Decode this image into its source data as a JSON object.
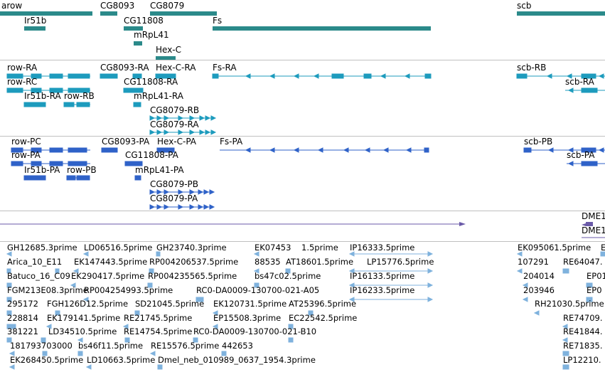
{
  "colors": {
    "gene": "#2b8a8a",
    "transcript": "#1d9bbd",
    "protein": "#2f62c8",
    "deletion": "#6a5aa8",
    "est": "#7fb2dd",
    "divider": "#c0c0c0"
  },
  "tracks": {
    "genes": {
      "labels": [
        "arow",
        "CG8093",
        "CG8079",
        "scb",
        "Ir51b",
        "CG11808",
        "Fs",
        "mRpL41",
        "Hex-C"
      ]
    },
    "transcripts": {
      "labels": [
        "row-RA",
        "CG8093-RA",
        "Hex-C-RA",
        "Fs-RA",
        "scb-RB",
        "row-RC",
        "CG11808-RA",
        "scb-RA",
        "Ir51b-RA",
        "row-RB",
        "mRpL41-RA",
        "CG8079-RB",
        "CG8079-RA"
      ]
    },
    "proteins": {
      "labels": [
        "row-PC",
        "CG8093-PA",
        "Hex-C-PA",
        "Fs-PA",
        "scb-PB",
        "row-PA",
        "CG11808-PA",
        "scb-PA",
        "Ir51b-PA",
        "row-PB",
        "mRpL41-PA",
        "CG8079-PB",
        "CG8079-PA"
      ]
    },
    "deletions": {
      "labels": [
        "DME1",
        "DME1"
      ]
    },
    "ests": {
      "labels": [
        "GH12685.3prime",
        "LD06516.5prime",
        "GH23740.3prime",
        "EK07453",
        "1.5prime",
        "IP16333.5prime",
        "EK095061.5prime",
        "E",
        "Arica_10_E11",
        "EK147443.5prime",
        "RP004206537.5prime",
        "88535",
        "AT18601.5prime",
        "LP15776.5prime",
        "107291",
        "RE64047.",
        "Batuco_16_C09",
        "EK290417.5prime",
        "RP004235565.5prime",
        "bs47c02.5prime",
        "IP16133.5prime",
        "204014",
        "EP01",
        "FGM213E08.3prime",
        "RP004254993.5prime",
        "RC0-DA0009-130700-021-A05",
        "IP16233.5prime",
        "203946",
        "EP0",
        "295172",
        "FGH126D12.5prime",
        "SD21045.5prime",
        "EK120731.5prime",
        "AT25396.5prime",
        "RH21030.5prime",
        "228814",
        "EK179141.5prime",
        "RE21745.5prime",
        "EP15508.3prime",
        "EC22542.5prime",
        "RE74709.",
        "381221",
        "LD34510.5prime",
        "RE14754.5prime",
        "RC0-DA0009-130700-021-B10",
        "RE41844.",
        "181793703000",
        "bs46f11.5prime",
        "RE15576.5prime",
        "442653",
        "RE71835.",
        "EK268450.5prime",
        "LD10663.5prime",
        "Dmel_neb_010989_0637_1954.3prime",
        "LP12210."
      ]
    }
  }
}
